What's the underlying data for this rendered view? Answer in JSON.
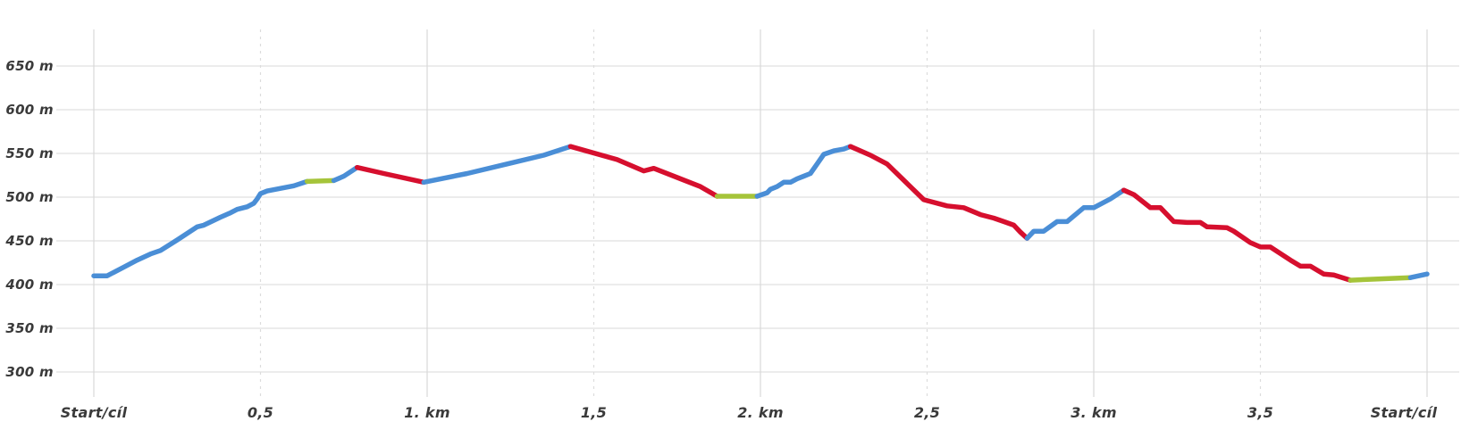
{
  "chart_data": {
    "type": "line",
    "description": "elevation-profile",
    "x_unit": "km",
    "y_unit": "m",
    "x_range": [
      0,
      4
    ],
    "y_range": [
      300,
      650
    ],
    "grid": true,
    "legend": "none",
    "colors": {
      "ascent": "#4a8ed6",
      "descent": "#d60f2e",
      "flat": "#a5c43a",
      "grid_h": "#e1e1e1",
      "grid_v_major": "#d8d8d8",
      "grid_v_minor": "#dcdcdc",
      "label": "#3a3a3a",
      "background": "#ffffff"
    },
    "y_ticks": [
      {
        "value": 650,
        "label": "650 m"
      },
      {
        "value": 600,
        "label": "600 m"
      },
      {
        "value": 550,
        "label": "550 m"
      },
      {
        "value": 500,
        "label": "500 m"
      },
      {
        "value": 450,
        "label": "450 m"
      },
      {
        "value": 400,
        "label": "400 m"
      },
      {
        "value": 350,
        "label": "350 m"
      },
      {
        "value": 300,
        "label": "300 m"
      }
    ],
    "x_ticks": [
      {
        "value": 0,
        "label": "Start/cíl",
        "major": true
      },
      {
        "value": 0.5,
        "label": "0,5",
        "major": false
      },
      {
        "value": 1,
        "label": "1. km",
        "major": true
      },
      {
        "value": 1.5,
        "label": "1,5",
        "major": false
      },
      {
        "value": 2,
        "label": "2. km",
        "major": true
      },
      {
        "value": 2.5,
        "label": "2,5",
        "major": false
      },
      {
        "value": 3,
        "label": "3. km",
        "major": true
      },
      {
        "value": 3.5,
        "label": "3,5",
        "major": false
      },
      {
        "value": 4,
        "label": "Start/cíl",
        "major": true
      }
    ],
    "segments": [
      {
        "grade": "ascent",
        "points": [
          [
            0,
            410
          ],
          [
            0.04,
            410
          ],
          [
            0.09,
            420
          ],
          [
            0.13,
            428
          ],
          [
            0.17,
            435
          ],
          [
            0.2,
            439
          ],
          [
            0.25,
            451
          ],
          [
            0.31,
            466
          ],
          [
            0.33,
            468
          ],
          [
            0.38,
            477
          ],
          [
            0.41,
            482
          ],
          [
            0.43,
            486
          ],
          [
            0.46,
            489
          ],
          [
            0.48,
            493
          ],
          [
            0.49,
            498
          ],
          [
            0.5,
            504
          ],
          [
            0.52,
            507
          ],
          [
            0.56,
            510
          ],
          [
            0.6,
            513
          ],
          [
            0.64,
            518
          ]
        ]
      },
      {
        "grade": "flat",
        "points": [
          [
            0.64,
            518
          ],
          [
            0.72,
            519
          ]
        ]
      },
      {
        "grade": "ascent",
        "points": [
          [
            0.72,
            519
          ],
          [
            0.75,
            524
          ],
          [
            0.79,
            534
          ]
        ]
      },
      {
        "grade": "descent",
        "points": [
          [
            0.79,
            534
          ],
          [
            0.87,
            527
          ],
          [
            0.99,
            517
          ]
        ]
      },
      {
        "grade": "ascent",
        "points": [
          [
            0.99,
            517
          ],
          [
            1.12,
            527
          ],
          [
            1.24,
            538
          ],
          [
            1.35,
            548
          ],
          [
            1.43,
            558
          ]
        ]
      },
      {
        "grade": "descent",
        "points": [
          [
            1.43,
            558
          ],
          [
            1.57,
            543
          ],
          [
            1.65,
            530
          ],
          [
            1.68,
            533
          ],
          [
            1.82,
            512
          ],
          [
            1.87,
            501
          ]
        ]
      },
      {
        "grade": "flat",
        "points": [
          [
            1.87,
            501
          ],
          [
            1.99,
            501
          ]
        ]
      },
      {
        "grade": "ascent",
        "points": [
          [
            1.99,
            501
          ],
          [
            2.02,
            505
          ],
          [
            2.03,
            509
          ],
          [
            2.05,
            512
          ],
          [
            2.07,
            517
          ],
          [
            2.09,
            517
          ],
          [
            2.11,
            521
          ],
          [
            2.13,
            524
          ],
          [
            2.15,
            527
          ],
          [
            2.17,
            538
          ],
          [
            2.19,
            549
          ],
          [
            2.22,
            553
          ],
          [
            2.25,
            555
          ],
          [
            2.27,
            558
          ]
        ]
      },
      {
        "grade": "descent",
        "points": [
          [
            2.27,
            558
          ],
          [
            2.33,
            548
          ],
          [
            2.38,
            538
          ],
          [
            2.49,
            497
          ],
          [
            2.56,
            490
          ],
          [
            2.61,
            488
          ],
          [
            2.66,
            480
          ],
          [
            2.7,
            476
          ],
          [
            2.73,
            472
          ],
          [
            2.76,
            468
          ],
          [
            2.78,
            460
          ],
          [
            2.8,
            453
          ]
        ]
      },
      {
        "grade": "ascent",
        "points": [
          [
            2.8,
            453
          ],
          [
            2.82,
            461
          ],
          [
            2.85,
            461
          ],
          [
            2.89,
            472
          ],
          [
            2.92,
            472
          ],
          [
            2.97,
            488
          ],
          [
            3.0,
            488
          ],
          [
            3.05,
            498
          ],
          [
            3.09,
            508
          ]
        ]
      },
      {
        "grade": "descent",
        "points": [
          [
            3.09,
            508
          ],
          [
            3.12,
            503
          ],
          [
            3.14,
            497
          ],
          [
            3.17,
            488
          ],
          [
            3.2,
            488
          ],
          [
            3.24,
            472
          ],
          [
            3.28,
            471
          ],
          [
            3.32,
            471
          ],
          [
            3.34,
            466
          ],
          [
            3.4,
            465
          ],
          [
            3.42,
            461
          ],
          [
            3.47,
            448
          ],
          [
            3.5,
            443
          ],
          [
            3.53,
            443
          ],
          [
            3.59,
            428
          ],
          [
            3.62,
            421
          ],
          [
            3.65,
            421
          ],
          [
            3.69,
            412
          ],
          [
            3.72,
            411
          ],
          [
            3.77,
            405
          ]
        ]
      },
      {
        "grade": "flat",
        "points": [
          [
            3.77,
            405
          ],
          [
            3.95,
            408
          ]
        ]
      },
      {
        "grade": "ascent",
        "points": [
          [
            3.95,
            408
          ],
          [
            4,
            412
          ]
        ]
      }
    ]
  }
}
